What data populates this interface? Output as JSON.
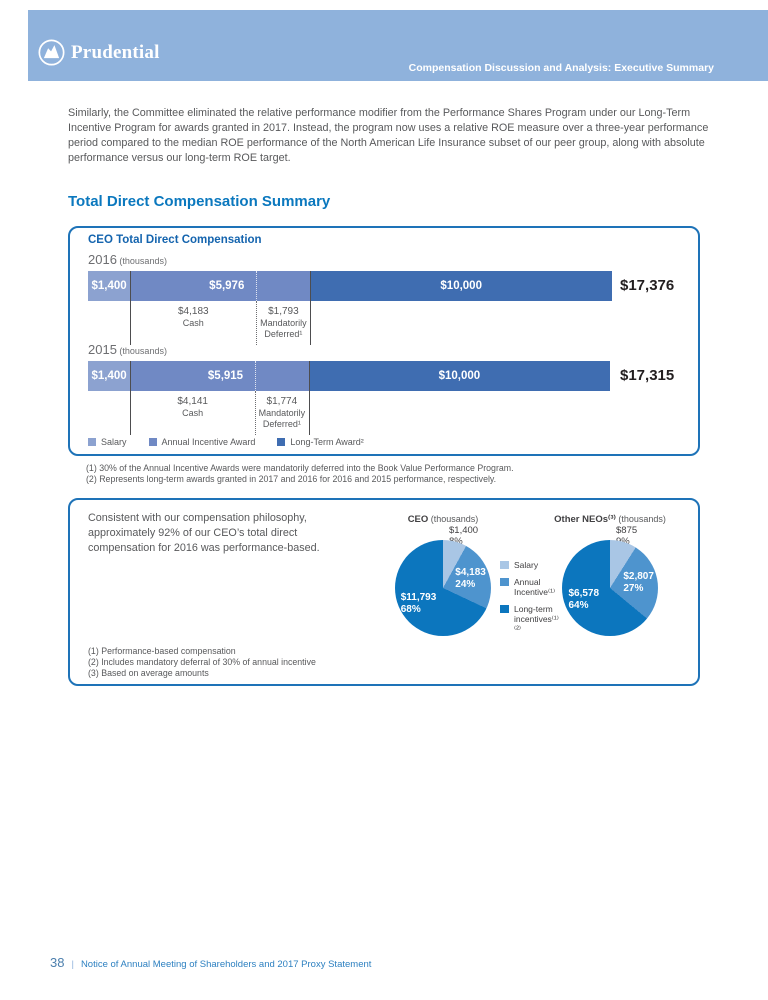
{
  "header": {
    "brand": "Prudential",
    "section_title": "Compensation Discussion and Analysis: Executive Summary"
  },
  "intro_paragraph": "Similarly, the Committee eliminated the relative performance modifier from the Performance Shares Program under our Long-Term Incentive Program for awards granted in 2017. Instead, the program now uses a relative ROE measure over a three-year performance period compared to the median ROE performance of the North American Life Insurance subset of our peer group, along with absolute performance versus our long-term ROE target.",
  "main_heading": "Total Direct Compensation Summary",
  "colors": {
    "header_bg": "#8FB2DC",
    "heading_blue": "#0B78BE",
    "panel_border": "#1E73B8",
    "panel_title": "#1464AE",
    "bar_salary": "#8CA2D0",
    "bar_annual": "#7089C4",
    "bar_lti": "#3F6DB1",
    "pie_salary": "#A9C6E5",
    "pie_annual": "#4E94CE",
    "pie_lti": "#0C76BE",
    "text_gray": "#58595B",
    "total_black": "#231F20"
  },
  "chart_data": [
    {
      "type": "bar",
      "stacked": true,
      "title": "CEO Total Direct Compensation",
      "unit_label": "(thousands)",
      "xlabel": "",
      "ylabel": "",
      "categories": [
        "2016",
        "2015"
      ],
      "series": [
        {
          "name": "Salary",
          "values": [
            1400,
            1400
          ]
        },
        {
          "name": "Annual Incentive Award",
          "values": [
            5976,
            5915
          ]
        },
        {
          "name": "Long-Term Award²",
          "values": [
            10000,
            10000
          ]
        }
      ],
      "rows": [
        {
          "year": "2016",
          "salary": 1400,
          "annual": 5976,
          "cash": 4183,
          "deferred": 1793,
          "lti": 10000,
          "total": 17376,
          "salary_label": "$1,400",
          "annual_label": "$5,976",
          "lti_label": "$10,000",
          "total_label": "$17,376",
          "cash_label": "$4,183",
          "cash_sub": "Cash",
          "deferred_label": "$1,793",
          "deferred_sub": "Mandatorily\nDeferred¹"
        },
        {
          "year": "2015",
          "salary": 1400,
          "annual": 5915,
          "cash": 4141,
          "deferred": 1774,
          "lti": 10000,
          "total": 17315,
          "salary_label": "$1,400",
          "annual_label": "$5,915",
          "lti_label": "$10,000",
          "total_label": "$17,315",
          "cash_label": "$4,141",
          "cash_sub": "Cash",
          "deferred_label": "$1,774",
          "deferred_sub": "Mandatorily\nDeferred¹"
        }
      ],
      "legend": [
        {
          "label": "Salary",
          "color_key": "bar_salary"
        },
        {
          "label": "Annual Incentive Award",
          "color_key": "bar_annual"
        },
        {
          "label": "Long-Term Award²",
          "color_key": "bar_lti"
        }
      ],
      "footnotes": [
        "(1)  30% of the Annual Incentive Awards were mandatorily deferred into the Book Value Performance Program.",
        "(2)  Represents long-term awards granted in 2017 and 2016 for 2016 and 2015 performance, respectively."
      ]
    },
    {
      "type": "pie",
      "id": "ceo",
      "title": "CEO",
      "unit": "(thousands)",
      "labels": [
        "Salary",
        "Annual Incentive⁽¹⁾",
        "Long-term incentives⁽¹⁾⁽²⁾"
      ],
      "values": [
        1400,
        4183,
        11793
      ],
      "slices": [
        {
          "name": "Salary",
          "value_label": "$1,400",
          "pct": 8,
          "pct_label": "8%",
          "color_key": "pie_salary",
          "placement": "outside"
        },
        {
          "name": "Annual Incentive",
          "value_label": "$4,183",
          "pct": 24,
          "pct_label": "24%",
          "color_key": "pie_annual",
          "placement": "inside"
        },
        {
          "name": "Long-term incentives",
          "value_label": "$11,793",
          "pct": 68,
          "pct_label": "68%",
          "color_key": "pie_lti",
          "placement": "inside"
        }
      ]
    },
    {
      "type": "pie",
      "id": "neo",
      "title": "Other NEOs⁽³⁾",
      "unit": "(thousands)",
      "labels": [
        "Salary",
        "Annual Incentive⁽¹⁾",
        "Long-term incentives⁽¹⁾⁽²⁾"
      ],
      "values": [
        875,
        2807,
        6578
      ],
      "slices": [
        {
          "name": "Salary",
          "value_label": "$875",
          "pct": 9,
          "pct_label": "9%",
          "color_key": "pie_salary",
          "placement": "outside"
        },
        {
          "name": "Annual Incentive",
          "value_label": "$2,807",
          "pct": 27,
          "pct_label": "27%",
          "color_key": "pie_annual",
          "placement": "inside"
        },
        {
          "name": "Long-term incentives",
          "value_label": "$6,578",
          "pct": 64,
          "pct_label": "64%",
          "color_key": "pie_lti",
          "placement": "inside"
        }
      ]
    }
  ],
  "pie_section": {
    "paragraph": "Consistent with our compensation philosophy,\napproximately 92% of our CEO’s total direct\ncompensation for 2016 was performance-based.",
    "legend": [
      {
        "label": "Salary",
        "color_key": "pie_salary"
      },
      {
        "label": "Annual Incentive⁽¹⁾",
        "color_key": "pie_annual"
      },
      {
        "label": "Long-term incentives⁽¹⁾⁽²⁾",
        "color_key": "pie_lti"
      }
    ],
    "footnotes": [
      "(1)  Performance-based compensation",
      "(2)  Includes mandatory deferral of 30% of annual incentive",
      "(3)  Based on average amounts"
    ]
  },
  "footer": {
    "page_number": "38",
    "separator": "|",
    "text": "Notice of Annual Meeting of Shareholders and 2017 Proxy Statement"
  }
}
